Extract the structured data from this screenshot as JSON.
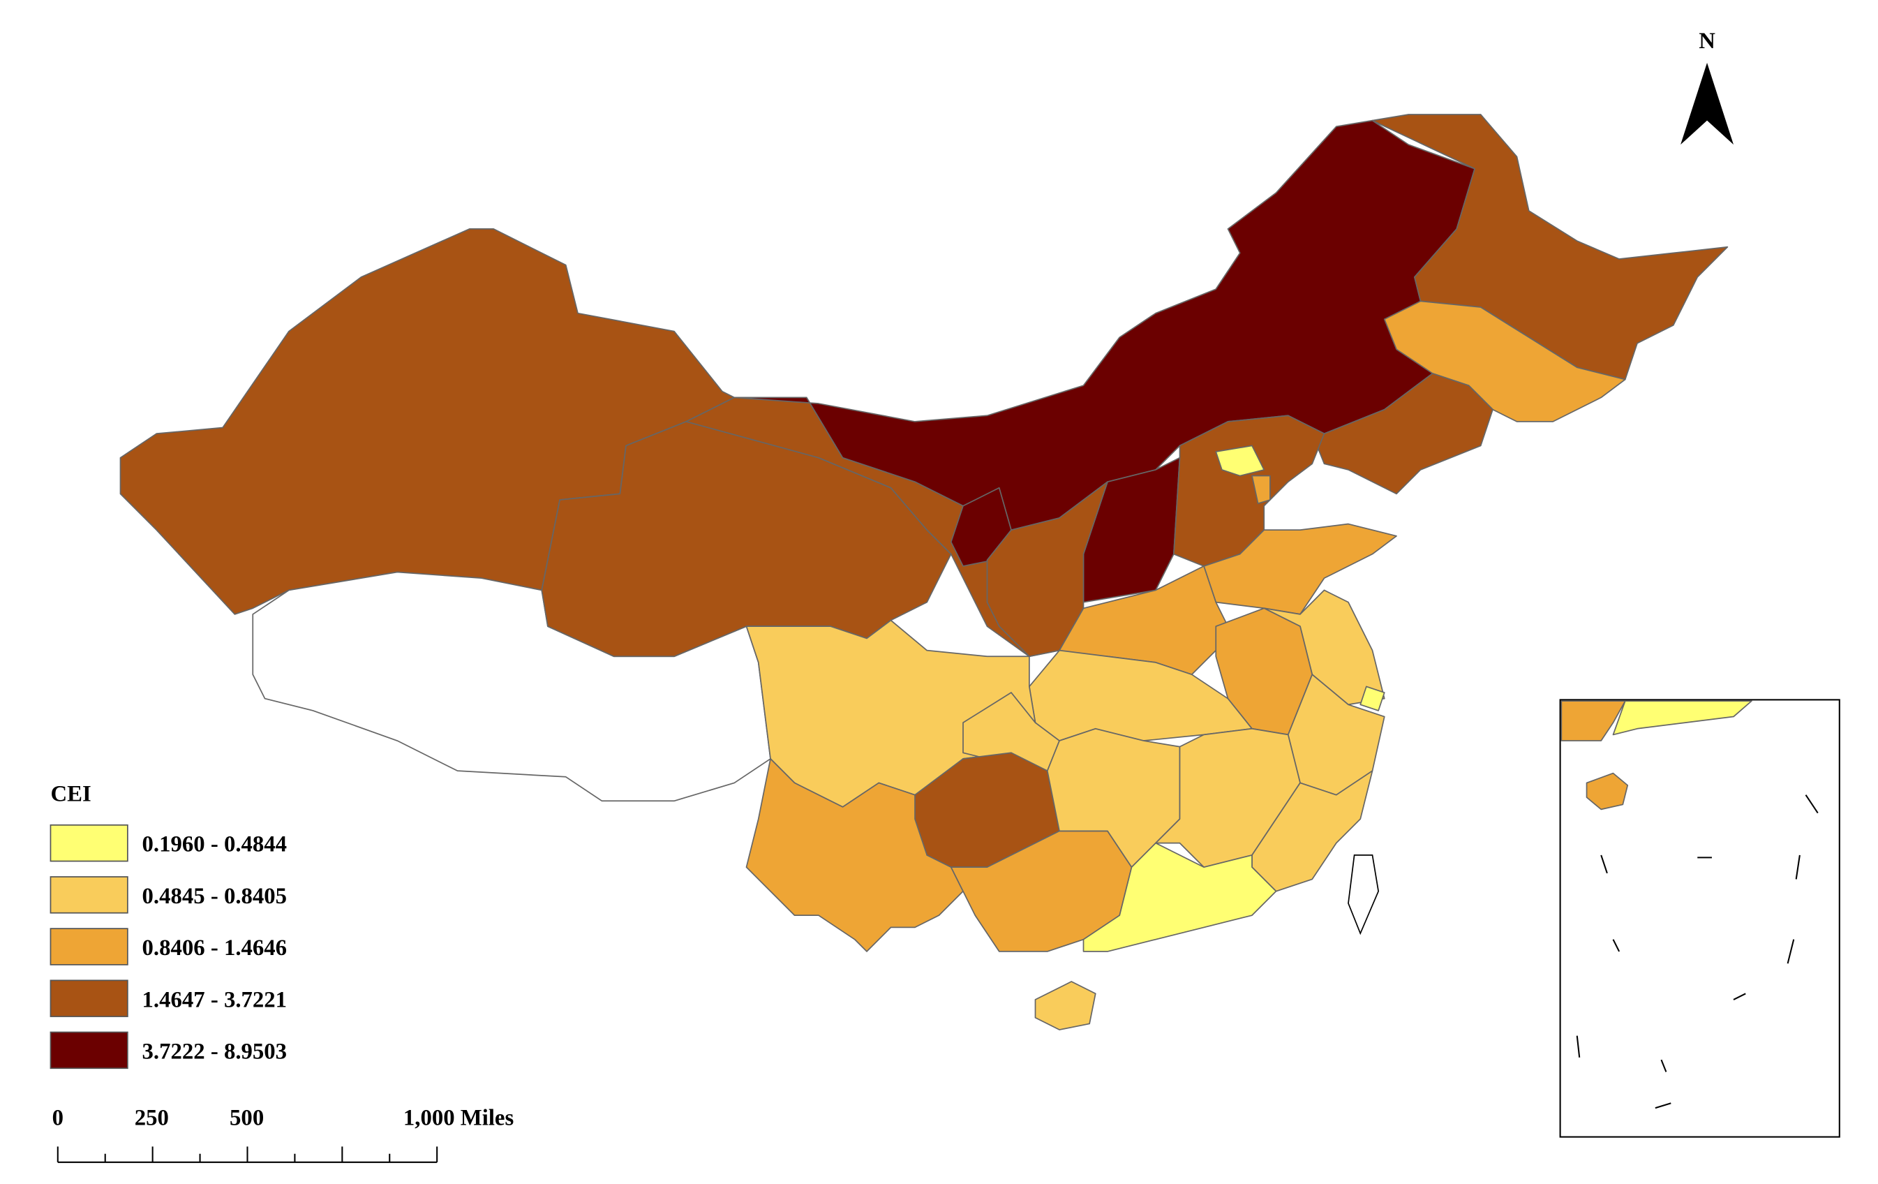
{
  "north_label": "N",
  "legend": {
    "title": "CEI",
    "items": [
      {
        "label": "0.1960 - 0.4844",
        "color": "#ffff73"
      },
      {
        "label": "0.4845 - 0.8405",
        "color": "#f9cc5b"
      },
      {
        "label": "0.8406 - 1.4646",
        "color": "#eea535"
      },
      {
        "label": "1.4647 - 3.7221",
        "color": "#a85314"
      },
      {
        "label": "3.7222 - 8.9503",
        "color": "#6b0000"
      }
    ]
  },
  "scale_bar": {
    "labels": [
      "0",
      "250",
      "500",
      "1,000 Miles"
    ]
  }
}
